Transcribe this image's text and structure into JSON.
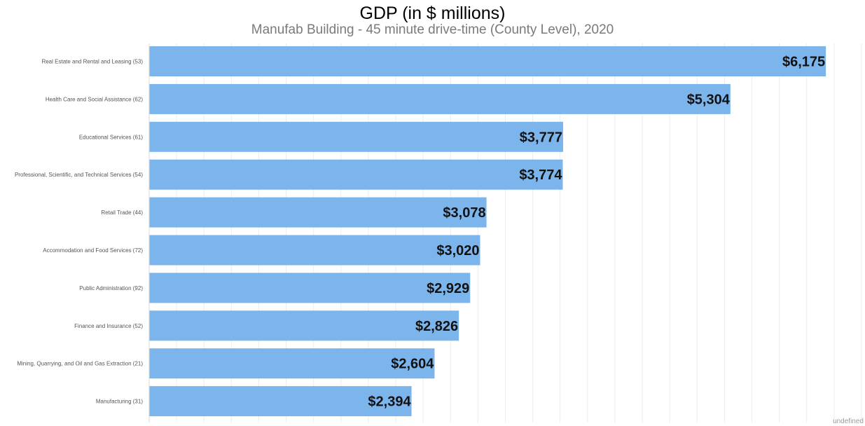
{
  "chart_data": {
    "type": "bar",
    "orientation": "horizontal",
    "title": "GDP (in $ millions)",
    "subtitle": "Manufab Building - 45 minute drive-time (County Level), 2020",
    "categories": [
      "Real Estate and Rental and Leasing (53)",
      "Health Care and Social Assistance (62)",
      "Educational Services (61)",
      "Professional, Scientific, and Technical Services (54)",
      "Retail Trade (44)",
      "Accommodation and Food Services (72)",
      "Public Administration (92)",
      "Finance and Insurance (52)",
      "Mining, Quarrying, and Oil and Gas Extraction (21)",
      "Manufacturing (31)"
    ],
    "values": [
      6175,
      5304,
      3777,
      3774,
      3078,
      3020,
      2929,
      2826,
      2604,
      2394
    ],
    "data_labels": [
      "$6,175",
      "$5,304",
      "$3,777",
      "$3,774",
      "$3,078",
      "$3,020",
      "$2,929",
      "$2,826",
      "$2,604",
      "$2,394"
    ],
    "xlim": [
      0,
      6500
    ],
    "grid": true,
    "bar_color": "#7cb4ec",
    "footer_label": "undefined"
  }
}
